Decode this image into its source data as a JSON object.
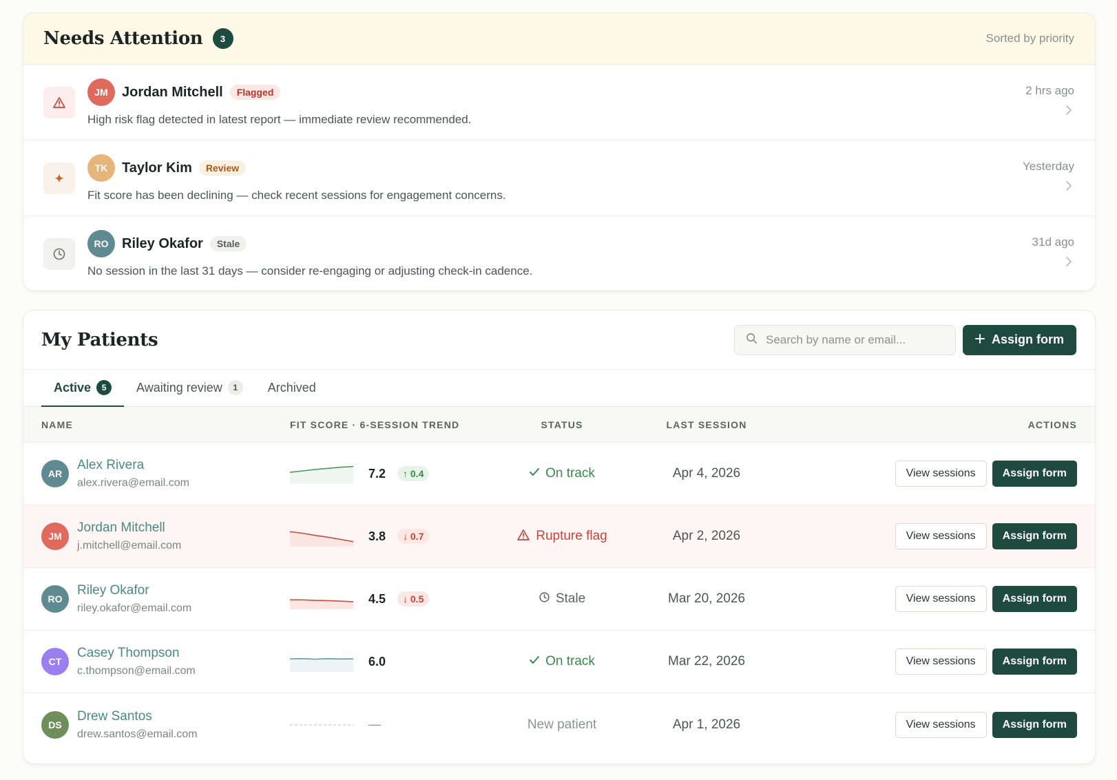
{
  "attention": {
    "title": "Needs Attention",
    "count": "3",
    "sort_label": "Sorted by priority",
    "items": [
      {
        "initials": "JM",
        "avatar_color": "#df6a5d",
        "name": "Jordan Mitchell",
        "tag": "Flagged",
        "tag_bg": "#fbe8e4",
        "tag_fg": "#b83a2f",
        "icon": "warning-triangle-icon",
        "icon_bg": "#fbeeec",
        "icon_color": "#c8443a",
        "description": "High risk flag detected in latest report — immediate review recommended.",
        "time": "2 hrs ago"
      },
      {
        "initials": "TK",
        "avatar_color": "#e7b57a",
        "name": "Taylor Kim",
        "tag": "Review",
        "tag_bg": "#faf0e1",
        "tag_fg": "#a35d1b",
        "icon": "sparkle-icon",
        "icon_bg": "#faf1ea",
        "icon_color": "#c6692e",
        "description": "Fit score has been declining — check recent sessions for engagement concerns.",
        "time": "Yesterday"
      },
      {
        "initials": "RO",
        "avatar_color": "#5f8a91",
        "name": "Riley Okafor",
        "tag": "Stale",
        "tag_bg": "#f0f0ed",
        "tag_fg": "#555d5b",
        "icon": "clock-icon",
        "icon_bg": "#f1f1ef",
        "icon_color": "#6b7371",
        "description": "No session in the last 31 days — consider re-engaging or adjusting check-in cadence.",
        "time": "31d ago"
      }
    ]
  },
  "patients": {
    "title": "My Patients",
    "search_placeholder": "Search by name or email...",
    "assign_label": "Assign form",
    "tabs": [
      {
        "label": "Active",
        "count": "5",
        "active": true
      },
      {
        "label": "Awaiting review",
        "count": "1",
        "active": false
      },
      {
        "label": "Archived",
        "count": "",
        "active": false
      }
    ],
    "columns": {
      "name": "NAME",
      "fit": "FIT SCORE · 6-SESSION TREND",
      "status": "STATUS",
      "last": "LAST SESSION",
      "actions": "ACTIONS"
    },
    "view_label": "View sessions",
    "rows": [
      {
        "initials": "AR",
        "avatar_color": "#5f8a91",
        "name": "Alex Rivera",
        "email": "alex.rivera@email.com",
        "score": "7.2",
        "delta": "0.4",
        "delta_dir": "up",
        "trend": [
          5.6,
          6.0,
          6.4,
          6.7,
          7.0,
          7.2
        ],
        "trend_color": "#4d9a5a",
        "trend_fill": "#eef6ef",
        "status": "On track",
        "status_kind": "ok",
        "status_color": "#3a8a47",
        "last": "Apr 4, 2026",
        "alert": false
      },
      {
        "initials": "JM",
        "avatar_color": "#df6a5d",
        "name": "Jordan Mitchell",
        "email": "j.mitchell@email.com",
        "score": "3.8",
        "delta": "0.7",
        "delta_dir": "down",
        "trend": [
          6.5,
          6.1,
          5.5,
          5.0,
          4.4,
          3.8
        ],
        "trend_color": "#cc4a3e",
        "trend_fill": "#fbe6e2",
        "status": "Rupture flag",
        "status_kind": "flag",
        "status_color": "#c8443a",
        "last": "Apr 2, 2026",
        "alert": true
      },
      {
        "initials": "RO",
        "avatar_color": "#5f8a91",
        "name": "Riley Okafor",
        "email": "riley.okafor@email.com",
        "score": "4.5",
        "delta": "0.5",
        "delta_dir": "down",
        "trend": [
          5.0,
          5.0,
          4.85,
          4.8,
          4.65,
          4.5
        ],
        "trend_color": "#cc4a3e",
        "trend_fill": "#fbe6e2",
        "status": "Stale",
        "status_kind": "stale",
        "status_color": "#5b6361",
        "last": "Mar 20, 2026",
        "alert": false
      },
      {
        "initials": "CT",
        "avatar_color": "#9b7ff0",
        "name": "Casey Thompson",
        "email": "c.thompson@email.com",
        "score": "6.0",
        "delta": "",
        "delta_dir": "",
        "trend": [
          6.0,
          6.05,
          5.9,
          6.05,
          5.95,
          6.0
        ],
        "trend_color": "#5f9aa0",
        "trend_fill": "#eef4f5",
        "status": "On track",
        "status_kind": "ok",
        "status_color": "#3a8a47",
        "last": "Mar 22, 2026",
        "alert": false
      },
      {
        "initials": "DS",
        "avatar_color": "#6e8f5a",
        "name": "Drew Santos",
        "email": "drew.santos@email.com",
        "score": "—",
        "delta": "",
        "delta_dir": "",
        "trend": [],
        "trend_color": "#c9c9c4",
        "trend_fill": "",
        "status": "New patient",
        "status_kind": "new",
        "status_color": "#8d918f",
        "last": "Apr 1, 2026",
        "alert": false
      }
    ]
  }
}
